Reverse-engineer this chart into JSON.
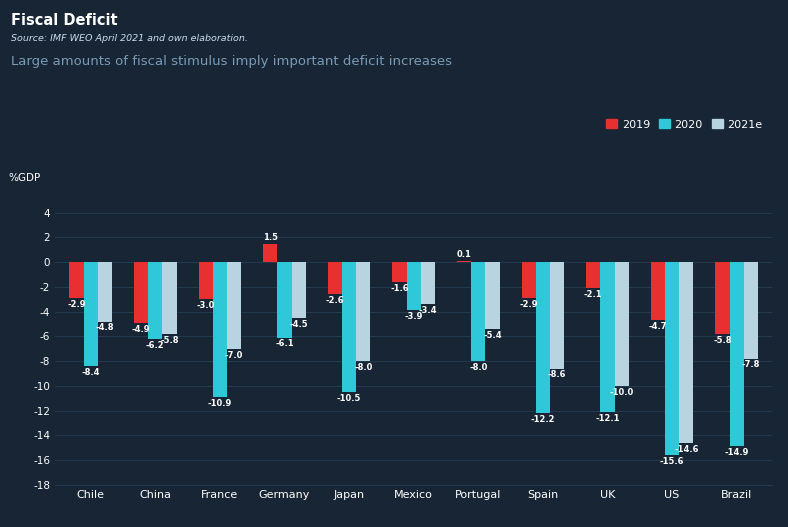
{
  "title": "Fiscal Deficit",
  "source": "Source: IMF WEO April 2021 and own elaboration.",
  "subtitle": "Large amounts of fiscal stimulus imply important deficit increases",
  "background_color": "#172535",
  "text_color": "#ffffff",
  "subtitle_color": "#7a9bb5",
  "grid_color": "#243a4e",
  "source_color": "#ccddee",
  "categories": [
    "Chile",
    "China",
    "France",
    "Germany",
    "Japan",
    "Mexico",
    "Portugal",
    "Spain",
    "UK",
    "US",
    "Brazil"
  ],
  "series": {
    "2019": [
      -2.9,
      -4.9,
      -3.0,
      1.5,
      -2.6,
      -1.6,
      0.1,
      -2.9,
      -2.1,
      -4.7,
      -5.8
    ],
    "2020": [
      -8.4,
      -6.2,
      -10.9,
      -6.1,
      -10.5,
      -3.9,
      -8.0,
      -12.2,
      -12.1,
      -15.6,
      -14.9
    ],
    "2021e": [
      -4.8,
      -5.8,
      -7.0,
      -4.5,
      -8.0,
      -3.4,
      -5.4,
      -8.6,
      -10.0,
      -14.6,
      -7.8
    ]
  },
  "colors": {
    "2019": "#e83030",
    "2020": "#2ec8d8",
    "2021e": "#b8d4e0"
  },
  "ylim": [
    -18,
    5
  ],
  "yticks": [
    -18,
    -16,
    -14,
    -12,
    -10,
    -8,
    -6,
    -4,
    -2,
    0,
    2,
    4
  ],
  "ylabel": "%GDP"
}
